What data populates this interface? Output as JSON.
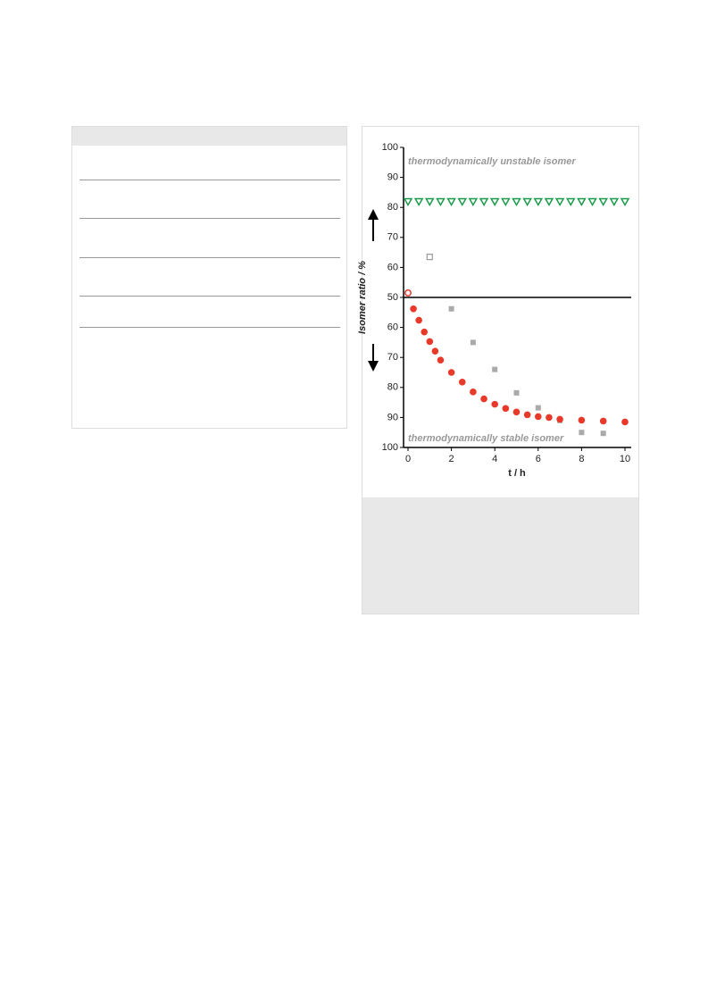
{
  "chart_data": {
    "type": "scatter",
    "xlabel": "t / h",
    "ylabel": "Isomer ratio / %",
    "annotations": [
      "thermodynamically unstable isomer",
      "thermodynamically stable isomer"
    ],
    "xlim": [
      0,
      10
    ],
    "xticks": [
      0,
      2,
      4,
      6,
      8,
      10
    ],
    "ylim": [
      50,
      100
    ],
    "yticks": [
      50,
      60,
      70,
      80,
      90,
      100
    ],
    "y2lim": [
      50,
      100
    ],
    "y2ticks": [
      60,
      70,
      80,
      90,
      100
    ],
    "y2_reversed": true,
    "series": [
      {
        "marker": "triangle-down-open",
        "color": "#1a9a4a",
        "x": [
          0,
          0.5,
          1,
          1.5,
          2,
          2.5,
          3,
          3.5,
          4,
          4.5,
          5,
          5.5,
          6,
          6.5,
          7,
          7.5,
          8,
          8.5,
          9,
          9.5,
          10
        ],
        "values": [
          82,
          82,
          82,
          82,
          82,
          82,
          82,
          82,
          82,
          82,
          82,
          82,
          82,
          82,
          82,
          82,
          82,
          82,
          82,
          82,
          82
        ]
      },
      {
        "marker": "circle-open",
        "color": "#e8392a",
        "x": [
          0
        ],
        "values": [
          51.5
        ]
      },
      {
        "marker": "square-open",
        "color": "#999999",
        "x": [
          1
        ],
        "values": [
          63.5
        ]
      },
      {
        "marker": "square",
        "color": "#aaaaaa",
        "axis": "y2",
        "x": [
          2,
          3,
          4,
          5,
          6,
          7,
          8,
          9
        ],
        "values": [
          53.8,
          65,
          74,
          81.8,
          86.8,
          91,
          95,
          95.3
        ]
      },
      {
        "marker": "circle",
        "color": "#e8392a",
        "axis": "y2",
        "x": [
          0.25,
          0.5,
          0.75,
          1,
          1.25,
          1.5,
          2,
          2.5,
          3,
          3.5,
          4,
          4.5,
          5,
          5.5,
          6,
          6.5,
          7,
          8,
          9,
          10
        ],
        "values": [
          53.8,
          57.6,
          61.5,
          64.7,
          67.9,
          70.9,
          75,
          78.2,
          81.5,
          83.8,
          85.6,
          87,
          88.2,
          89.1,
          89.7,
          90,
          90.6,
          90.9,
          91.2,
          91.5
        ]
      }
    ]
  }
}
